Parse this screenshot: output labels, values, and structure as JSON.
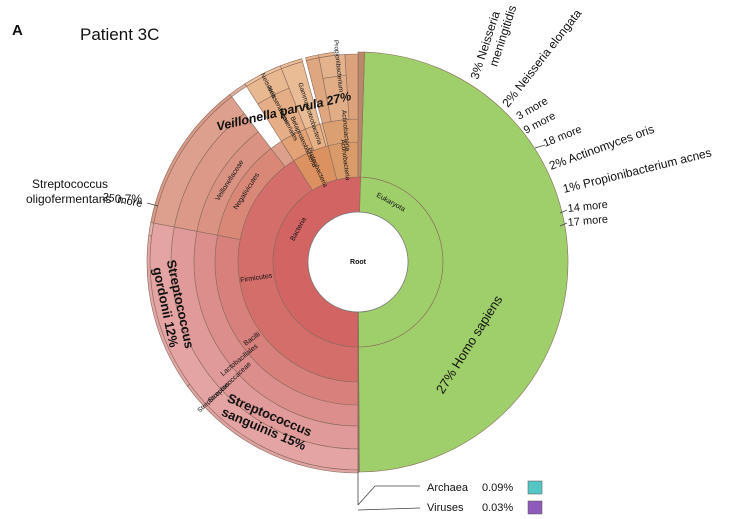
{
  "panel": {
    "letter": "A",
    "title": "Patient 3C"
  },
  "chart_data": {
    "type": "sunburst",
    "center_label": "Root",
    "colors": {
      "bacteria": "#d26464",
      "firmicutes": "#d67c72",
      "veillonella": "#d99a88",
      "strepto": "#e0a3a3",
      "proteo": "#e3ac80",
      "actino": "#d99b6a",
      "eukaryota": "#9ecf6a",
      "archaea": "#56c5c5",
      "viruses": "#8e5bbb"
    },
    "rings": {
      "domain": [
        {
          "label": "Bacteria",
          "start": 0,
          "end": 50.5
        },
        {
          "label": "Eukaryota",
          "start": 50.5,
          "end": 99.9
        }
      ],
      "phylum": [
        {
          "label": "Firmicutes",
          "start": 0,
          "end": 41.0
        },
        {
          "label": "Proteobacteria",
          "start": 41.0,
          "end": 46.0
        },
        {
          "label": "Actinobacteria",
          "start": 46.0,
          "end": 50.0
        }
      ],
      "class": [
        {
          "label": "Bacilli",
          "start": 0,
          "end": 28.0
        },
        {
          "label": "Negativicutes",
          "start": 28.0,
          "end": 39.6
        },
        {
          "label": "Betaproteobacteria",
          "start": 41.0,
          "end": 44.0
        },
        {
          "label": "Gammaproteobacteria",
          "start": 44.0,
          "end": 45.7
        },
        {
          "label": "Actinobacteria",
          "start": 46.0,
          "end": 50.0
        }
      ],
      "order": [
        {
          "label": "Lactobacillales",
          "start": 0,
          "end": 28.0
        },
        {
          "label": "Veillonellaceae",
          "start": 28.0,
          "end": 39.6
        },
        {
          "label": "Neisseriales",
          "start": 41.0,
          "end": 44.0
        },
        {
          "label": "Pasteurellales",
          "start": 44.0,
          "end": 45.7
        },
        {
          "label": "Propionibacteriales",
          "start": 47.0,
          "end": 49.0
        }
      ]
    },
    "species": [
      {
        "label": "Streptococcus sanguinis",
        "percent": 15
      },
      {
        "label": "Streptococcus gordonii",
        "percent": 12
      },
      {
        "label": "Streptococcus oligofermentans",
        "percent": 0.7
      },
      {
        "label": "Veillonella parvula",
        "percent": 27
      },
      {
        "label": "Neisseria meningitidis",
        "percent": 3
      },
      {
        "label": "Neisseria elongata",
        "percent": 2
      },
      {
        "label": "Actinomyces oris",
        "percent": 2
      },
      {
        "label": "Propionibacterium acnes",
        "percent": 1
      },
      {
        "label": "Homo sapiens",
        "percent": 27
      }
    ],
    "more_labels": [
      "25 more",
      "3 more",
      "9 more",
      "18 more",
      "14 more",
      "17 more"
    ],
    "inner_labels": [
      "Bacteria",
      "Firmicutes",
      "Bacilli",
      "Lactobacillales",
      "Streptococcaceae",
      "Streptococcus",
      "Negativicutes",
      "Veillonellaceae",
      "Betaproteobacteria",
      "Gammaproteobacteria",
      "Proteobacteria",
      "Neisseriales",
      "Neisseriaceae",
      "Neisseria",
      "Actinobacteria",
      "Propionibacterium",
      "Eukaryota"
    ],
    "legend": [
      {
        "label": "Archaea",
        "percent": "0.09%",
        "color": "#56c5c5"
      },
      {
        "label": "Viruses",
        "percent": "0.03%",
        "color": "#8e5bbb"
      }
    ]
  }
}
